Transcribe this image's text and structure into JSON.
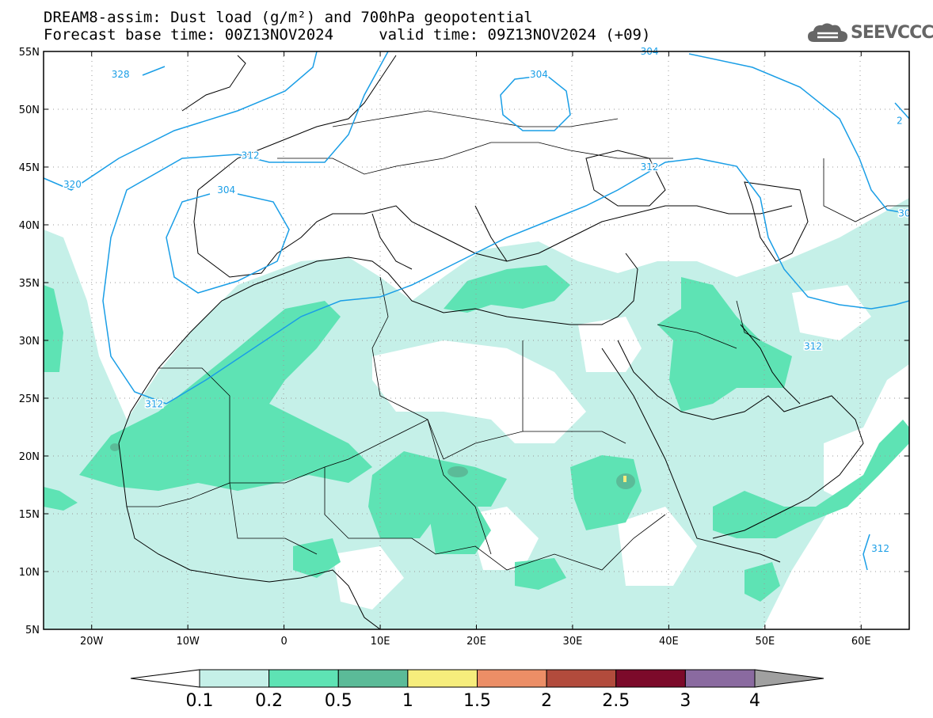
{
  "title": {
    "line1": "DREAM8-assim: Dust load (g/m²) and 700hPa geopotential",
    "line2": "Forecast base time: 00Z13NOV2024     valid time: 09Z13NOV2024 (+09)"
  },
  "logo": {
    "text": "SEEVCCC",
    "icon": "cloud-icon"
  },
  "axes": {
    "lat_labels": [
      "55N",
      "50N",
      "45N",
      "40N",
      "35N",
      "30N",
      "25N",
      "20N",
      "15N",
      "10N",
      "5N"
    ],
    "lat_values": [
      55,
      50,
      45,
      40,
      35,
      30,
      25,
      20,
      15,
      10,
      5
    ],
    "lon_labels": [
      "20W",
      "10W",
      "0",
      "10E",
      "20E",
      "30E",
      "40E",
      "50E",
      "60E"
    ],
    "lon_values": [
      -20,
      -10,
      0,
      10,
      20,
      30,
      40,
      50,
      60
    ],
    "lon_range": [
      -25,
      65
    ],
    "lat_range": [
      5,
      55
    ]
  },
  "contour_labels": [
    {
      "text": "328",
      "lon": -17,
      "lat": 53
    },
    {
      "text": "320",
      "lon": -22,
      "lat": 43.5
    },
    {
      "text": "312",
      "lon": -3.5,
      "lat": 46
    },
    {
      "text": "304",
      "lon": -6,
      "lat": 43
    },
    {
      "text": "312",
      "lon": -13.5,
      "lat": 24.5
    },
    {
      "text": "304",
      "lon": 26.5,
      "lat": 53
    },
    {
      "text": "304",
      "lon": 38,
      "lat": 55
    },
    {
      "text": "312",
      "lon": 38,
      "lat": 45
    },
    {
      "text": "312",
      "lon": 62,
      "lat": 12
    },
    {
      "text": "312",
      "lon": 55,
      "lat": 29.5
    },
    {
      "text": "2",
      "lon": 64,
      "lat": 49
    },
    {
      "text": "30",
      "lon": 64.5,
      "lat": 41
    }
  ],
  "colorbar": {
    "levels": [
      "0.1",
      "0.2",
      "0.5",
      "1",
      "1.5",
      "2",
      "2.5",
      "3",
      "4"
    ],
    "colors": [
      "#c5f0e8",
      "#5ee3b4",
      "#5bbb98",
      "#f6ed7c",
      "#ec8e66",
      "#b24b3c",
      "#7c0a2a",
      "#8a6aa0"
    ],
    "under_color": "#ffffff",
    "over_color": "#a0a0a0"
  },
  "colors": {
    "contour": "#1a9ee6",
    "dust_low": "#c5f0e8",
    "dust_mid": "#5ee3b4",
    "dust_high": "#5bbb98",
    "dust_peak": "#f6ed7c"
  }
}
